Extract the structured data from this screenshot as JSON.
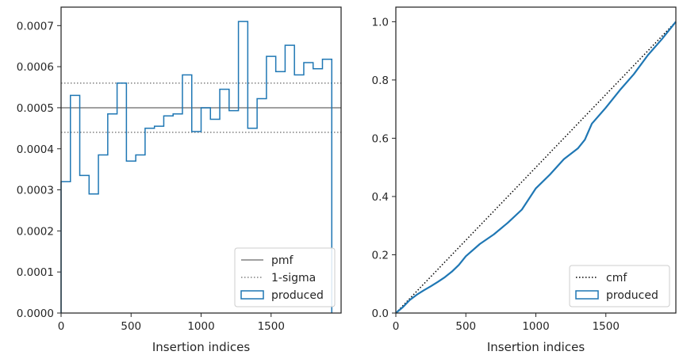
{
  "chart_data": [
    {
      "type": "step",
      "xlabel": "Insertion indices",
      "ylabel": "",
      "xlim": [
        0,
        2000
      ],
      "ylim": [
        0,
        0.000745
      ],
      "xticks": [
        0,
        500,
        1000,
        1500
      ],
      "xtick_labels": [
        "0",
        "500",
        "1000",
        "1500"
      ],
      "yticks": [
        0,
        0.0001,
        0.0002,
        0.0003,
        0.0004,
        0.0005,
        0.0006,
        0.0007
      ],
      "ytick_labels": [
        "0.0000",
        "0.0001",
        "0.0002",
        "0.0003",
        "0.0004",
        "0.0005",
        "0.0006",
        "0.0007"
      ],
      "grid": false,
      "legend_position": "lower-right",
      "series": [
        {
          "name": "produced",
          "kind": "histogram-step",
          "color": "#1f77b4",
          "bin_width": 66.67,
          "values": [
            0.00032,
            0.00053,
            0.000335,
            0.00029,
            0.000385,
            0.000485,
            0.00056,
            0.00037,
            0.000385,
            0.00045,
            0.000455,
            0.00048,
            0.000485,
            0.00058,
            0.000442,
            0.0005,
            0.000472,
            0.000545,
            0.000493,
            0.00071,
            0.00045,
            0.000522,
            0.000625,
            0.000588,
            0.000652,
            0.00058,
            0.00061,
            0.000595,
            0.000618
          ]
        },
        {
          "name": "pmf",
          "kind": "hline",
          "color": "#808080",
          "value": 0.0005
        },
        {
          "name": "1-sigma",
          "kind": "hline-dotted",
          "color": "#808080",
          "values": [
            0.00056,
            0.00044
          ]
        }
      ],
      "legend": [
        {
          "label": "pmf",
          "style": "solid-line"
        },
        {
          "label": "1-sigma",
          "style": "dotted-line"
        },
        {
          "label": "produced",
          "style": "box"
        }
      ]
    },
    {
      "type": "line",
      "xlabel": "Insertion indices",
      "ylabel": "",
      "xlim": [
        0,
        2000
      ],
      "ylim": [
        0,
        1.05
      ],
      "xticks": [
        0,
        500,
        1000,
        1500
      ],
      "xtick_labels": [
        "0",
        "500",
        "1000",
        "1500"
      ],
      "yticks": [
        0,
        0.2,
        0.4,
        0.6,
        0.8,
        1.0
      ],
      "ytick_labels": [
        "0.0",
        "0.2",
        "0.4",
        "0.6",
        "0.8",
        "1.0"
      ],
      "grid": false,
      "legend_position": "lower-right",
      "series": [
        {
          "name": "cmf",
          "kind": "dotted-line",
          "color": "#000000",
          "x": [
            0,
            2000
          ],
          "y": [
            0,
            1.0
          ]
        },
        {
          "name": "produced",
          "kind": "line",
          "color": "#1f77b4",
          "x": [
            0,
            50,
            100,
            150,
            200,
            250,
            300,
            350,
            400,
            450,
            500,
            600,
            700,
            800,
            900,
            1000,
            1100,
            1200,
            1300,
            1350,
            1400,
            1500,
            1600,
            1700,
            1800,
            1900,
            2000
          ],
          "y": [
            0,
            0.02,
            0.045,
            0.063,
            0.078,
            0.092,
            0.107,
            0.123,
            0.142,
            0.165,
            0.195,
            0.237,
            0.27,
            0.31,
            0.355,
            0.428,
            0.475,
            0.528,
            0.565,
            0.595,
            0.65,
            0.705,
            0.765,
            0.82,
            0.885,
            0.94,
            1.0
          ]
        }
      ],
      "legend": [
        {
          "label": "cmf",
          "style": "dotted-line"
        },
        {
          "label": "produced",
          "style": "box"
        }
      ]
    }
  ]
}
